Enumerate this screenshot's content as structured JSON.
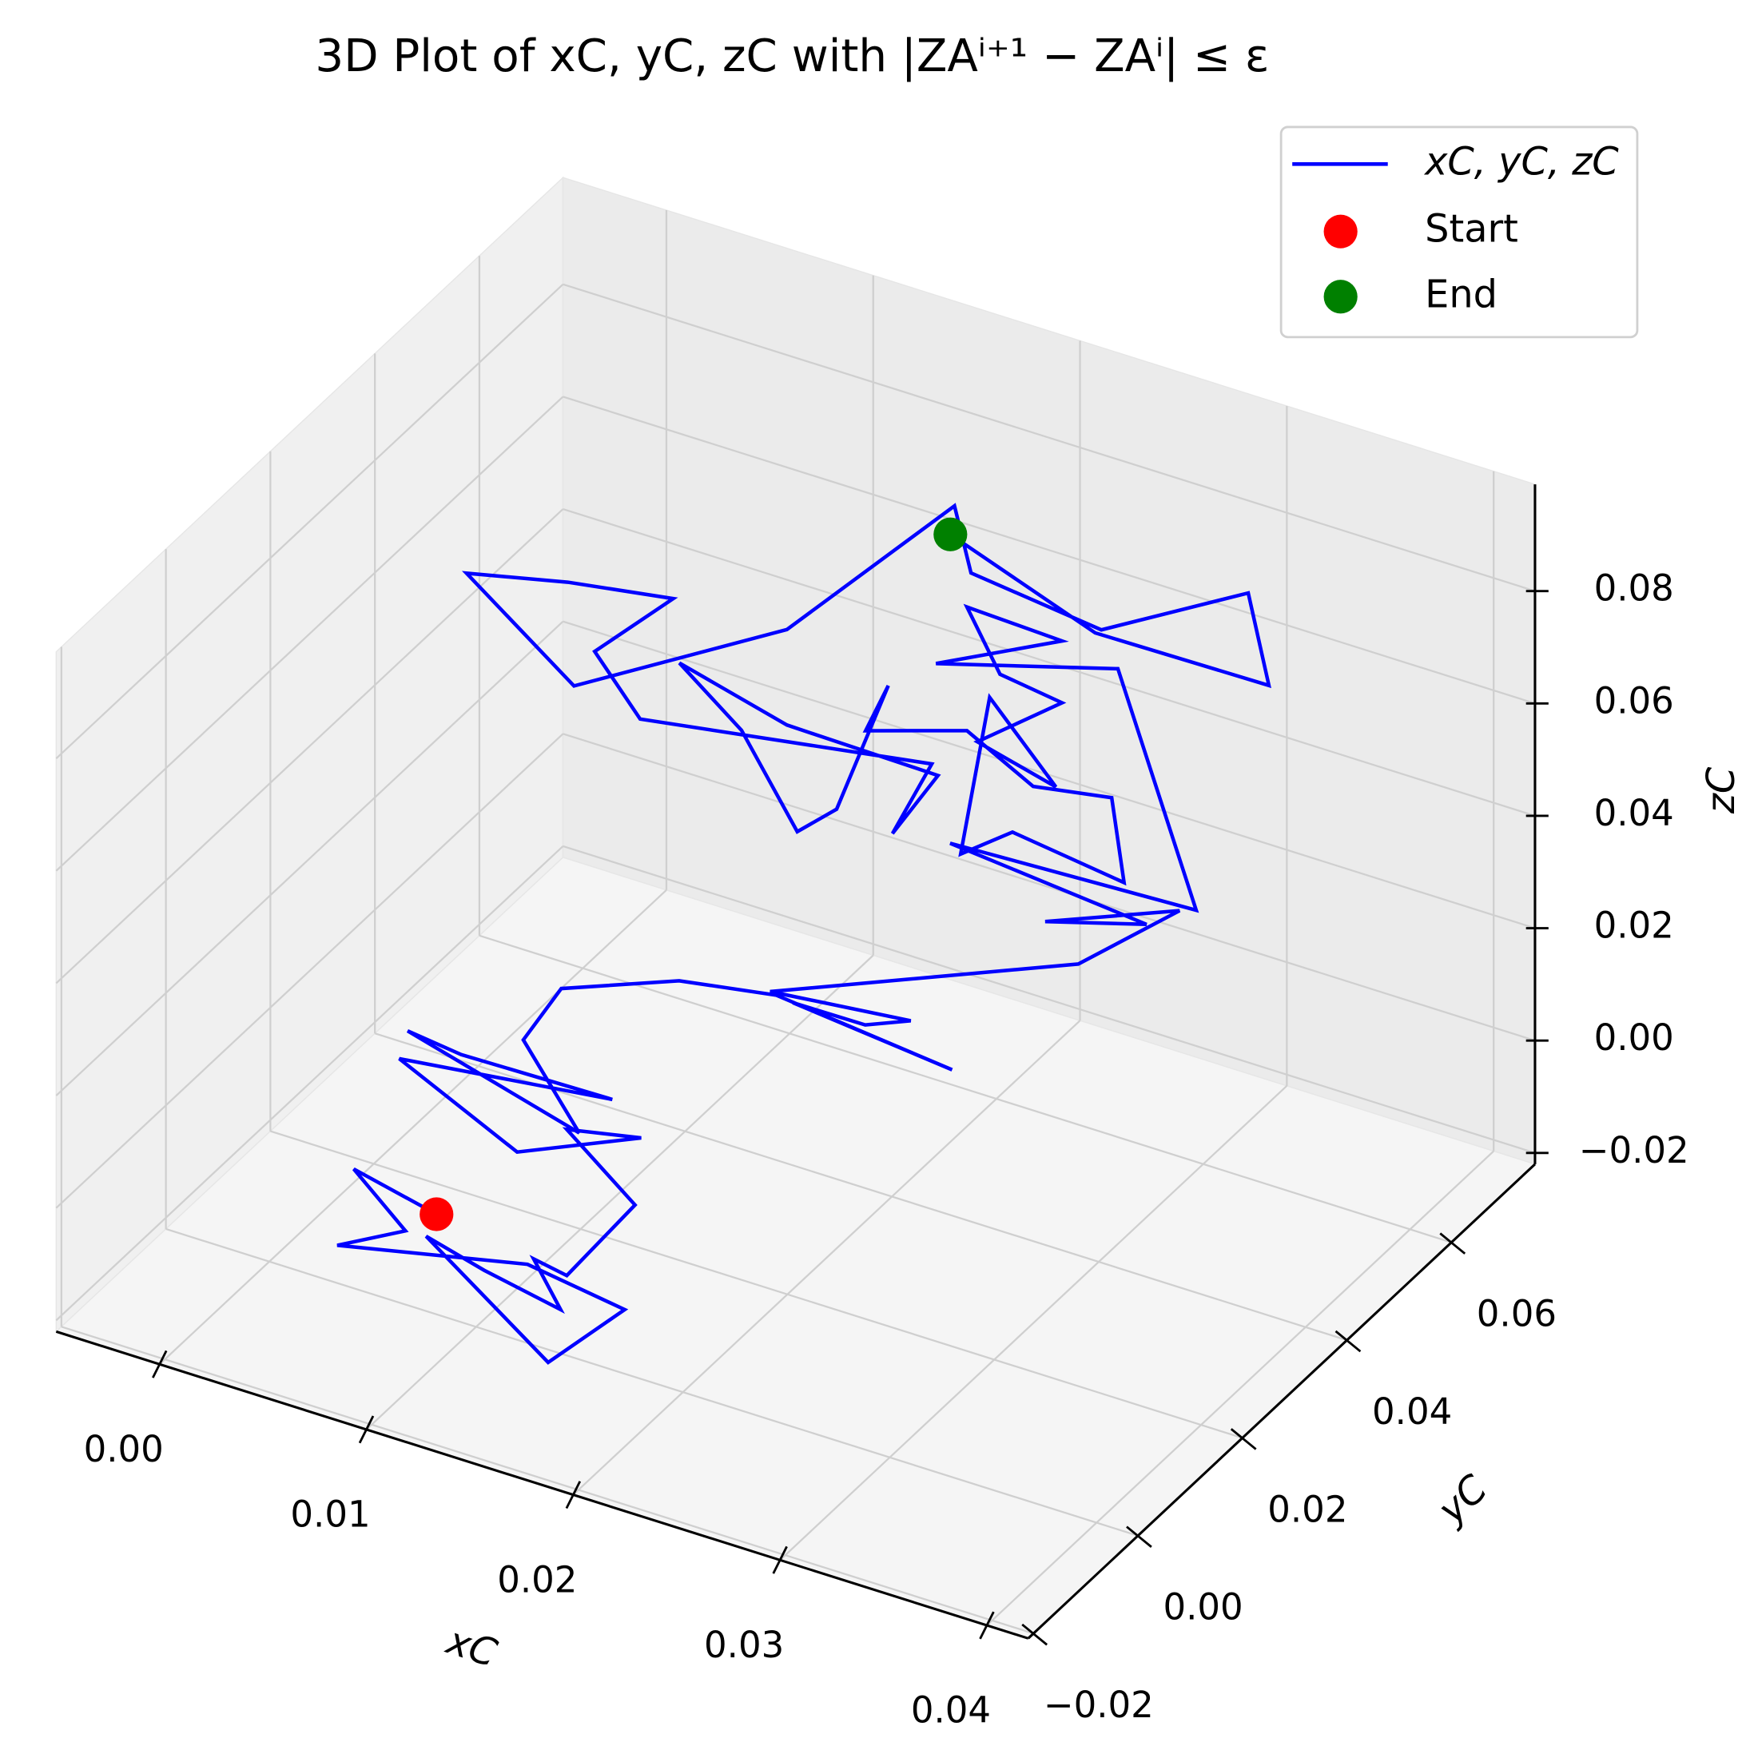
{
  "chart_data": {
    "type": "line3d",
    "title": "3D Plot of xC, yC, zC with |ZAⁱ⁺¹ − ZAⁱ| ≤ ε",
    "xlabel": "xC",
    "ylabel": "yC",
    "zlabel": "zC",
    "xlim": [
      -0.005,
      0.042
    ],
    "ylim": [
      -0.021,
      0.076
    ],
    "zlim": [
      -0.022,
      0.099
    ],
    "xticks": [
      {
        "value": 0,
        "label": "0.00"
      },
      {
        "value": 0.01,
        "label": "0.01"
      },
      {
        "value": 0.02,
        "label": "0.02"
      },
      {
        "value": 0.03,
        "label": "0.03"
      },
      {
        "value": 0.04,
        "label": "0.04"
      }
    ],
    "yticks": [
      {
        "value": -0.02,
        "label": "−0.02"
      },
      {
        "value": 0,
        "label": "0.00"
      },
      {
        "value": 0.02,
        "label": "0.02"
      },
      {
        "value": 0.04,
        "label": "0.04"
      },
      {
        "value": 0.06,
        "label": "0.06"
      }
    ],
    "zticks": [
      {
        "value": -0.02,
        "label": "−0.02"
      },
      {
        "value": 0,
        "label": "0.00"
      },
      {
        "value": 0.02,
        "label": "0.02"
      },
      {
        "value": 0.04,
        "label": "0.04"
      },
      {
        "value": 0.06,
        "label": "0.06"
      },
      {
        "value": 0.08,
        "label": "0.08"
      }
    ],
    "grid": true,
    "legend": "upper right",
    "series": [
      {
        "name": "xC, yC, zC",
        "color": "#0000ff",
        "x": [
          0.0096,
          0.0056,
          0.0081,
          0.0048,
          0.014,
          0.0187,
          0.015,
          0.0091,
          0.0119,
          0.0156,
          0.0143,
          0.0159,
          0.0192,
          0.0159,
          0.0195,
          0.0135,
          0.0078,
          0.0181,
          0.0108,
          0.0082,
          0.0165,
          0.0138,
          0.0078,
          0.0135,
          0.0182,
          0.0267,
          0.019,
          0.0225,
          0.0247,
          0.0179,
          0.0328,
          0.0377,
          0.0312,
          0.0361,
          0.0266,
          0.0385,
          0.0284,
          0.0196,
          0.0257,
          0.0211,
          0.0227,
          0.0257,
          0.0216,
          0.0254,
          0.0222,
          0.0208,
          0.0233,
          0.0287,
          0.0281,
          0.0243,
          0.0211,
          0.0162,
          0.0173,
          0.0148,
          0.0129,
          0.0102,
          0.0072,
          0.0124,
          0.0197,
          0.0175,
          0.0194,
          0.0053,
          0.0031,
          0.0069,
          0.0018,
          -0.0031,
          0.0021,
          0.0124,
          0.0205,
          0.0213,
          0.0276,
          0.0347,
          0.0357,
          0.0273,
          0.0203
        ],
        "y": [
          -0.006,
          -0.006,
          -0.006,
          -0.006,
          -0.006,
          -0.006,
          -0.006,
          -0.006,
          -0.006,
          -0.006,
          -0.006,
          -0.006,
          -0.006,
          -0.006,
          -0.006,
          -0.006,
          -0.006,
          -0.006,
          -0.006,
          -0.006,
          -0.006,
          -0.006,
          0.025,
          0.025,
          0.025,
          0.025,
          0.025,
          0.025,
          0.025,
          0.025,
          0.025,
          0.025,
          0.025,
          0.025,
          0.025,
          0.025,
          0.05,
          0.05,
          0.05,
          0.05,
          0.05,
          0.05,
          0.05,
          0.05,
          0.05,
          0.05,
          0.05,
          0.05,
          0.05,
          0.05,
          0.05,
          0.05,
          0.05,
          0.05,
          0.05,
          0.05,
          0.05,
          0.05,
          0.05,
          0.05,
          0.05,
          0.05,
          0.05,
          0.05,
          0.05,
          0.05,
          0.05,
          0.05,
          0.05,
          0.05,
          0.05,
          0.05,
          0.05,
          0.05,
          0.05
        ],
        "z": [
          0.0028,
          0.0062,
          -0.0019,
          -0.0083,
          -0.001,
          -0.0036,
          -0.0173,
          -0.0017,
          -0.0045,
          -0.0072,
          0.0003,
          -0.0008,
          0.0156,
          0.0252,
          0.0279,
          0.0184,
          0.0284,
          0.0331,
          0.0326,
          0.0338,
          0.0253,
          0.0387,
          0.0139,
          0.0219,
          0.0248,
          0.0214,
          0.0244,
          0.0245,
          0.0278,
          0.0251,
          0.0473,
          0.0625,
          0.053,
          0.0582,
          0.0616,
          0.0635,
          0.073,
          0.0637,
          0.0748,
          0.0755,
          0.0654,
          0.0638,
          0.0521,
          0.0485,
          0.0607,
          0.0312,
          0.038,
          0.0353,
          0.0497,
          0.0473,
          0.0535,
          0.0478,
          0.0571,
          0.0322,
          0.026,
          0.0409,
          0.0494,
          0.0444,
          0.0439,
          0.031,
          0.0456,
          0.0372,
          0.0467,
          0.0605,
          0.0575,
          0.0534,
          0.0394,
          0.0614,
          0.0928,
          0.0818,
          0.079,
          0.0938,
          0.0785,
          0.0781,
          0.0875
        ]
      }
    ],
    "markers": [
      {
        "name": "Start",
        "color": "#ff0000",
        "x": 0.0096,
        "y": -0.006,
        "z": 0.0028
      },
      {
        "name": "End",
        "color": "#008000",
        "x": 0.0203,
        "y": 0.05,
        "z": 0.0875
      }
    ]
  }
}
